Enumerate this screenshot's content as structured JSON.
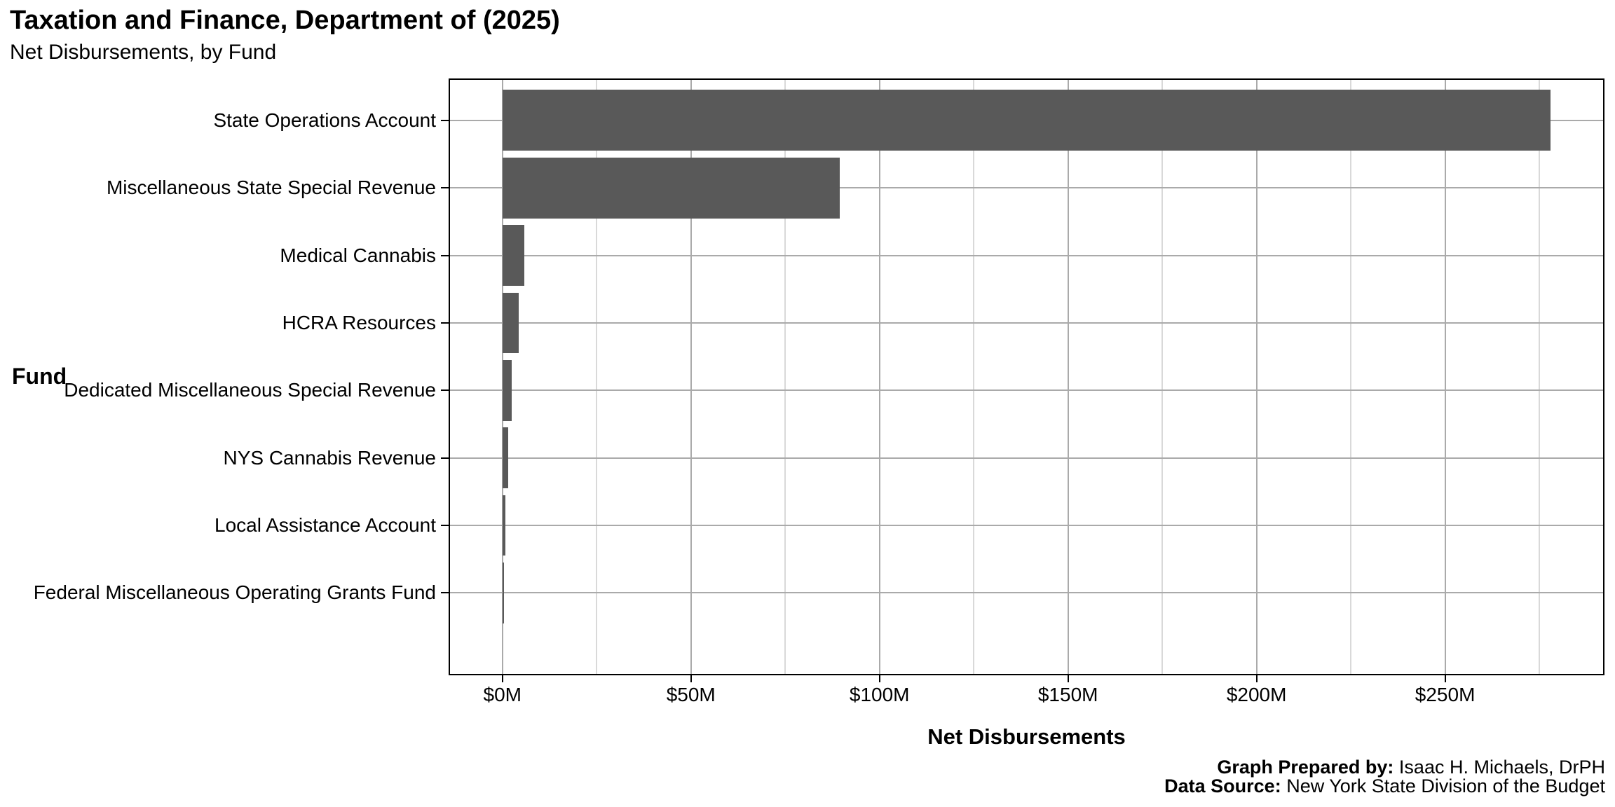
{
  "chart_data": {
    "type": "bar",
    "orientation": "horizontal",
    "title": "Taxation and Finance, Department of (2025)",
    "subtitle": "Net Disbursements, by Fund",
    "xlabel": "Net Disbursements",
    "ylabel": "Fund",
    "categories": [
      "State Operations Account",
      "Miscellaneous State Special Revenue",
      "Medical Cannabis",
      "HCRA Resources",
      "Dedicated Miscellaneous Special Revenue",
      "NYS Cannabis Revenue",
      "Local Assistance Account",
      "Federal Miscellaneous Operating Grants Fund"
    ],
    "values_million_usd": [
      278,
      89.5,
      5.8,
      4.3,
      2.5,
      1.5,
      0.8,
      0.4
    ],
    "x_tick_values": [
      0,
      50,
      100,
      150,
      200,
      250
    ],
    "x_tick_labels": [
      "$0M",
      "$50M",
      "$100M",
      "$150M",
      "$200M",
      "$250M"
    ],
    "x_minor_tick_values": [
      25,
      75,
      125,
      175,
      225,
      275
    ],
    "xlim": [
      -13.9,
      291.9
    ],
    "grid": {
      "vertical_major": true,
      "vertical_minor": true,
      "horizontal_major": true
    },
    "legend": "none",
    "bar_color": "#595959"
  },
  "footer": {
    "prepared_by_label": "Graph Prepared by:",
    "prepared_by_value": "Isaac H. Michaels, DrPH",
    "data_source_label": "Data Source:",
    "data_source_value": "New York State Division of the Budget"
  },
  "colors": {
    "bar": "#595959",
    "panel_border": "#000000",
    "grid_major": "#aaaaaa",
    "grid_minor": "#d9d9d9",
    "text": "#000000",
    "background": "#ffffff"
  }
}
